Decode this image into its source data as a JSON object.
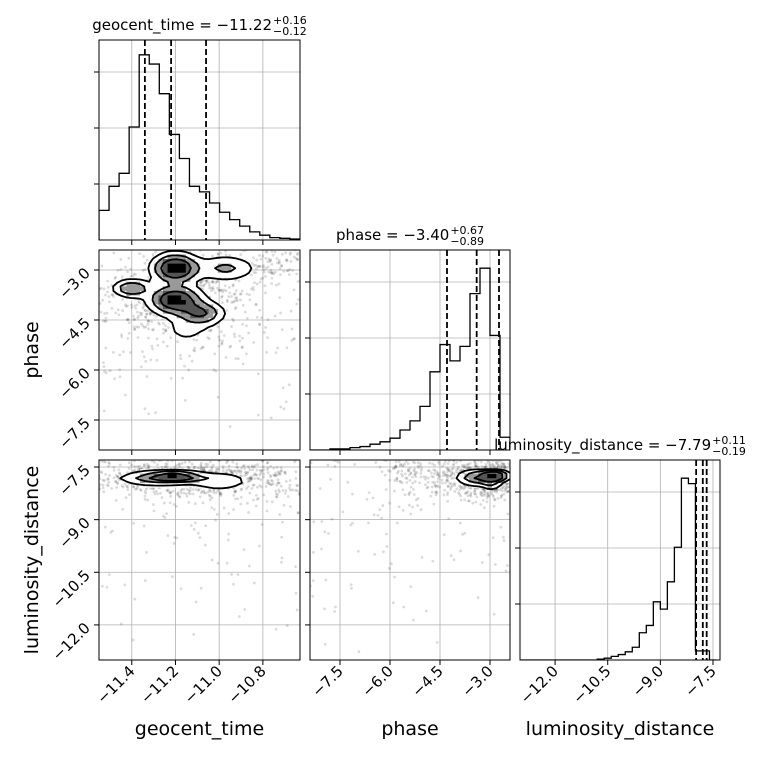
{
  "chart_data": {
    "type": "corner",
    "parameters": [
      {
        "name": "geocent_time",
        "title": {
          "main": "geocent_time = −11.22",
          "plus": "+0.16",
          "minus": "−0.12"
        },
        "axis_label": "geocent_time",
        "range": [
          -11.55,
          -10.63
        ],
        "ticks": [
          -11.4,
          -11.2,
          -11.0,
          -10.8
        ],
        "tick_labels": [
          "−11.4",
          "−11.2",
          "−11.0",
          "−10.8"
        ],
        "quantiles": [
          -11.34,
          -11.22,
          -11.06
        ],
        "hist_edges_start": -11.55,
        "hist_bin_width": 0.046,
        "hist_counts": [
          0.16,
          0.29,
          0.36,
          0.61,
          1.0,
          0.95,
          0.79,
          0.57,
          0.44,
          0.29,
          0.26,
          0.2,
          0.15,
          0.11,
          0.075,
          0.044,
          0.026,
          0.013,
          0.009,
          0.005
        ],
        "hist_ymax": 1.08
      },
      {
        "name": "phase",
        "title": {
          "main": "phase = −3.40",
          "plus": "+0.67",
          "minus": "−0.89"
        },
        "axis_label": "phase",
        "range": [
          -8.4,
          -2.4
        ],
        "ticks": [
          -7.5,
          -6.0,
          -4.5,
          -3.0
        ],
        "tick_labels": [
          "−7.5",
          "−6.0",
          "−4.5",
          "−3.0"
        ],
        "quantiles": [
          -4.29,
          -3.4,
          -2.73
        ],
        "hist_edges_start": -8.4,
        "hist_bin_width": 0.3,
        "hist_counts": [
          0,
          0,
          0.006,
          0.006,
          0.013,
          0.019,
          0.032,
          0.045,
          0.065,
          0.11,
          0.16,
          0.24,
          0.43,
          0.58,
          0.49,
          0.57,
          0.86,
          1.0,
          0.63,
          0.07
        ],
        "hist_ymax": 1.1
      },
      {
        "name": "luminosity_distance",
        "title": {
          "main": "luminosity_distance = −7.79",
          "plus": "+0.11",
          "minus": "−0.19"
        },
        "axis_label": "luminosity_distance",
        "range": [
          -13.0,
          -7.3
        ],
        "ticks": [
          -12.0,
          -10.5,
          -9.0,
          -7.5
        ],
        "tick_labels": [
          "−12.0",
          "−10.5",
          "−9.0",
          "−7.5"
        ],
        "quantiles": [
          -7.98,
          -7.79,
          -7.68
        ],
        "hist_edges_start": -13.0,
        "hist_bin_width": 0.2,
        "hist_counts": [
          0,
          0,
          0,
          0,
          0,
          0,
          0,
          0,
          0,
          0,
          0,
          0.005,
          0.01,
          0.02,
          0.03,
          0.045,
          0.07,
          0.15,
          0.19,
          0.32,
          0.28,
          0.43,
          0.62,
          1.0,
          0.97,
          0.05,
          0.05,
          0.0
        ],
        "hist_ymax": 1.1
      }
    ],
    "pairs": [
      {
        "x": "geocent_time",
        "y": "phase",
        "density_peaks": [
          {
            "x": -11.2,
            "y": -2.95,
            "sx": 0.06,
            "sy": 0.25,
            "w": 1.0
          },
          {
            "x": -11.2,
            "y": -3.9,
            "sx": 0.07,
            "sy": 0.25,
            "w": 0.9
          },
          {
            "x": -11.4,
            "y": -3.55,
            "sx": 0.05,
            "sy": 0.15,
            "w": 0.55
          },
          {
            "x": -11.08,
            "y": -4.3,
            "sx": 0.06,
            "sy": 0.2,
            "w": 0.55
          },
          {
            "x": -10.97,
            "y": -2.95,
            "sx": 0.08,
            "sy": 0.22,
            "w": 0.35
          },
          {
            "x": -11.15,
            "y": -4.8,
            "sx": 0.08,
            "sy": 0.3,
            "w": 0.15
          }
        ],
        "scatter_trend": {
          "x_start": -11.45,
          "y_start": -4.5,
          "x_end": -10.65,
          "y_end": -2.6
        }
      },
      {
        "x": "geocent_time",
        "y": "luminosity_distance",
        "density_peaks": [
          {
            "x": -11.2,
            "y": -7.78,
            "sx": 0.07,
            "sy": 0.08,
            "w": 1.0
          },
          {
            "x": -11.3,
            "y": -7.82,
            "sx": 0.1,
            "sy": 0.12,
            "w": 0.45
          },
          {
            "x": -11.0,
            "y": -7.9,
            "sx": 0.08,
            "sy": 0.15,
            "w": 0.35
          }
        ],
        "scatter_trend": {
          "x_start": -11.5,
          "y_start": -7.8,
          "x_end": -10.65,
          "y_end": -7.8
        }
      },
      {
        "x": "phase",
        "y": "luminosity_distance",
        "density_peaks": [
          {
            "x": -2.85,
            "y": -7.75,
            "sx": 0.25,
            "sy": 0.08,
            "w": 1.0
          },
          {
            "x": -3.4,
            "y": -7.8,
            "sx": 0.35,
            "sy": 0.13,
            "w": 0.55
          },
          {
            "x": -2.95,
            "y": -7.95,
            "sx": 0.2,
            "sy": 0.12,
            "w": 0.3
          }
        ],
        "scatter_trend": {
          "x_start": -6.0,
          "y_start": -7.6,
          "x_end": -2.5,
          "y_end": -7.7
        }
      }
    ],
    "contour_levels": 3,
    "grid": true,
    "quantile_lines": "dashed"
  }
}
